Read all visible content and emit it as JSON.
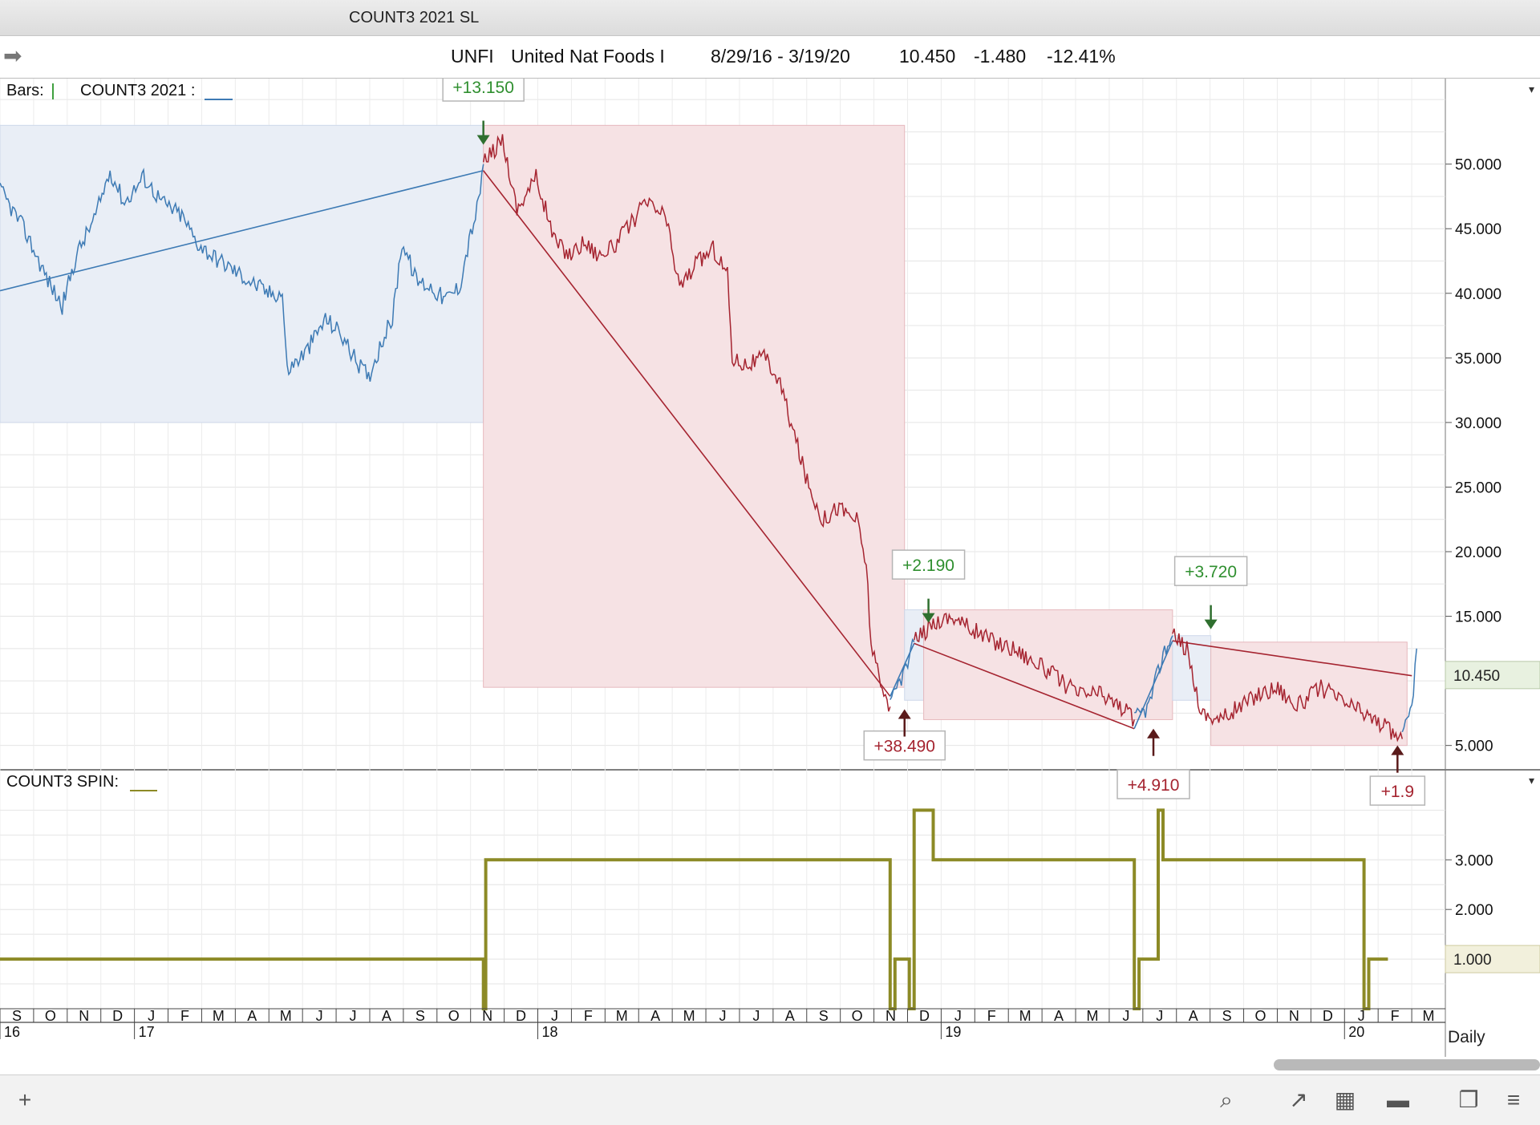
{
  "window": {
    "title": "COUNT3 2021 SL"
  },
  "info": {
    "symbol": "UNFI",
    "name": "United Nat Foods I",
    "range": "8/29/16 - 3/19/20",
    "last": "10.450",
    "change": "-1.480",
    "pct": "-12.41%"
  },
  "colors": {
    "blue": "#3d7ab4",
    "red": "#a52430",
    "green_label": "#2f8f2f",
    "olive": "#8c8a26",
    "blue_zone": "#e9eef6",
    "red_zone": "#f6e2e4"
  },
  "toolbar": {
    "daily_label": "Daily",
    "icons": [
      "plus-icon",
      "search-icon",
      "line-chart-icon",
      "grid-icon",
      "panel-icon",
      "book-icon",
      "menu-icon"
    ]
  },
  "chart_data": [
    {
      "type": "line",
      "panel_label": "Bars:",
      "indicator_label": "COUNT3 2021 :",
      "y_ticks": [
        "50.000",
        "45.000",
        "40.000",
        "35.000",
        "30.000",
        "25.000",
        "20.000",
        "15.000",
        "5.000"
      ],
      "last_value_tag": "10.450",
      "ylim": [
        2,
        56
      ],
      "price_series": {
        "blue_1": [
          [
            0,
            48
          ],
          [
            0.5,
            45
          ],
          [
            1,
            41
          ],
          [
            1.3,
            39
          ],
          [
            1.6,
            43
          ],
          [
            2,
            46
          ],
          [
            2.3,
            49.5
          ],
          [
            2.6,
            47
          ],
          [
            3,
            49
          ],
          [
            3.4,
            47
          ],
          [
            3.8,
            46
          ],
          [
            4.1,
            44
          ],
          [
            4.4,
            43
          ],
          [
            4.8,
            42
          ],
          [
            5.2,
            41
          ],
          [
            5.6,
            40
          ],
          [
            5.9,
            40
          ],
          [
            6.0,
            34
          ],
          [
            6.4,
            35.5
          ],
          [
            6.8,
            38
          ],
          [
            7.1,
            37
          ],
          [
            7.4,
            35
          ],
          [
            7.7,
            33.5
          ],
          [
            8.0,
            36.5
          ],
          [
            8.2,
            38
          ],
          [
            8.4,
            44
          ],
          [
            8.7,
            41
          ],
          [
            9.0,
            40.5
          ],
          [
            9.3,
            39.5
          ],
          [
            9.6,
            40.5
          ],
          [
            9.8,
            44
          ],
          [
            10.0,
            47
          ],
          [
            10.1,
            50
          ]
        ],
        "red_1": [
          [
            10.1,
            50
          ],
          [
            10.5,
            52
          ],
          [
            10.8,
            46.5
          ],
          [
            11.2,
            49
          ],
          [
            11.6,
            44
          ],
          [
            11.9,
            43
          ],
          [
            12.2,
            44
          ],
          [
            12.5,
            43
          ],
          [
            12.8,
            43.5
          ],
          [
            13.2,
            45.5
          ],
          [
            13.5,
            47
          ],
          [
            13.9,
            46
          ],
          [
            14.2,
            40.5
          ],
          [
            14.6,
            42.5
          ],
          [
            14.9,
            43.5
          ],
          [
            15.2,
            41.5
          ],
          [
            15.3,
            35
          ],
          [
            15.6,
            34.5
          ],
          [
            16.0,
            35
          ],
          [
            16.3,
            33
          ],
          [
            16.6,
            29
          ],
          [
            16.9,
            25
          ],
          [
            17.2,
            22.5
          ],
          [
            17.5,
            23.5
          ],
          [
            17.9,
            22.5
          ],
          [
            18.1,
            19
          ],
          [
            18.2,
            13
          ],
          [
            18.4,
            9.5
          ],
          [
            18.6,
            8
          ]
        ],
        "blue_2": [
          [
            18.6,
            8
          ],
          [
            18.8,
            10
          ],
          [
            19.0,
            11.5
          ],
          [
            19.1,
            13
          ]
        ],
        "red_2": [
          [
            19.1,
            13
          ],
          [
            19.5,
            14.5
          ],
          [
            19.9,
            15
          ],
          [
            20.3,
            14
          ],
          [
            20.8,
            13
          ],
          [
            21.2,
            12.5
          ],
          [
            21.6,
            11.5
          ],
          [
            22.0,
            10.5
          ],
          [
            22.5,
            9
          ],
          [
            23.0,
            9
          ],
          [
            23.4,
            8
          ],
          [
            23.7,
            7
          ]
        ],
        "blue_3": [
          [
            23.7,
            7
          ],
          [
            24.0,
            8
          ],
          [
            24.3,
            12
          ],
          [
            24.5,
            13.5
          ]
        ],
        "red_3": [
          [
            24.5,
            13.5
          ],
          [
            24.8,
            12.5
          ],
          [
            25.1,
            7.5
          ],
          [
            25.5,
            7
          ],
          [
            25.9,
            8
          ],
          [
            26.3,
            9
          ],
          [
            26.7,
            9.5
          ],
          [
            27.1,
            8
          ],
          [
            27.6,
            9.5
          ],
          [
            28.0,
            8.5
          ],
          [
            28.5,
            7.5
          ],
          [
            28.9,
            6.5
          ],
          [
            29.3,
            5.5
          ]
        ],
        "blue_4": [
          [
            29.3,
            5.5
          ],
          [
            29.5,
            8
          ],
          [
            29.6,
            12.5
          ]
        ]
      },
      "trend_lines": [
        {
          "color": "blue",
          "from": [
            0,
            40.2
          ],
          "to": [
            10.1,
            49.5
          ]
        },
        {
          "color": "red",
          "from": [
            10.1,
            49.5
          ],
          "to": [
            18.6,
            8.8
          ]
        },
        {
          "color": "blue",
          "from": [
            18.6,
            8.8
          ],
          "to": [
            19.1,
            12.9
          ]
        },
        {
          "color": "red",
          "from": [
            19.1,
            12.9
          ],
          "to": [
            23.7,
            6.3
          ]
        },
        {
          "color": "blue",
          "from": [
            23.7,
            6.3
          ],
          "to": [
            24.5,
            13.1
          ]
        },
        {
          "color": "red",
          "from": [
            24.5,
            13.1
          ],
          "to": [
            29.5,
            10.4
          ]
        }
      ],
      "zones": [
        {
          "color": "blue",
          "x": [
            0,
            10.1
          ],
          "y": [
            30,
            53
          ]
        },
        {
          "color": "red",
          "x": [
            10.1,
            18.9
          ],
          "y": [
            9.5,
            53
          ]
        },
        {
          "color": "blue",
          "x": [
            18.9,
            19.3
          ],
          "y": [
            8.5,
            15.5
          ]
        },
        {
          "color": "red",
          "x": [
            19.3,
            24.5
          ],
          "y": [
            7,
            15.5
          ]
        },
        {
          "color": "blue",
          "x": [
            24.5,
            25.3
          ],
          "y": [
            8.5,
            13.5
          ]
        },
        {
          "color": "red",
          "x": [
            25.3,
            29.4
          ],
          "y": [
            5,
            13
          ]
        }
      ],
      "annotations": [
        {
          "text": "+13.150",
          "color": "green",
          "x": 10.1,
          "box_y": 56,
          "arrow": "down",
          "arrow_y": 51.5
        },
        {
          "text": "+2.190",
          "color": "green",
          "x": 19.4,
          "box_y": 19,
          "arrow": "down",
          "arrow_y": 14.5
        },
        {
          "text": "+3.720",
          "color": "green",
          "x": 25.3,
          "box_y": 18.5,
          "arrow": "down",
          "arrow_y": 14
        },
        {
          "text": "+38.490",
          "color": "red",
          "x": 18.9,
          "box_y": 5,
          "arrow": "up",
          "arrow_y": 7.8
        },
        {
          "text": "+4.910",
          "color": "red",
          "x": 24.1,
          "box_y": 2,
          "arrow": "up",
          "arrow_y": 6.3
        },
        {
          "text": "+1.9",
          "color": "red",
          "x": 29.2,
          "box_y": 1.5,
          "arrow": "up",
          "arrow_y": 5
        }
      ]
    },
    {
      "type": "line",
      "panel_label": "COUNT3 SPIN:",
      "y_ticks": [
        "3.000",
        "2.000",
        "1.000"
      ],
      "last_value_tag": "1.000",
      "ylim": [
        0,
        4.2
      ],
      "series": [
        {
          "x": [
            0,
            10.1,
            10.1,
            10.15,
            10.15,
            18.6,
            18.6,
            18.7,
            18.7,
            19.0,
            19.0,
            19.1,
            19.1,
            19.5,
            19.5,
            23.7,
            23.7,
            23.8,
            23.8,
            24.2,
            24.2,
            24.3,
            24.3,
            24.5,
            24.5,
            28.5,
            28.5,
            28.6,
            28.6,
            29.0
          ],
          "values": [
            1,
            1,
            0,
            0,
            3,
            3,
            0,
            0,
            1,
            1,
            0,
            0,
            4,
            4,
            3,
            3,
            0,
            0,
            1,
            1,
            4,
            4,
            3,
            3,
            3,
            3,
            0,
            0,
            1,
            1
          ]
        }
      ]
    }
  ],
  "x_axis": {
    "months": [
      "S",
      "O",
      "N",
      "D",
      "J",
      "F",
      "M",
      "A",
      "M",
      "J",
      "J",
      "A",
      "S",
      "O",
      "N",
      "D",
      "J",
      "F",
      "M",
      "A",
      "M",
      "J",
      "J",
      "A",
      "S",
      "O",
      "N",
      "D",
      "J",
      "F",
      "M",
      "A",
      "M",
      "J",
      "J",
      "A",
      "S",
      "O",
      "N",
      "D",
      "J",
      "F",
      "M"
    ],
    "years": [
      {
        "label": "16",
        "index": 0
      },
      {
        "label": "17",
        "index": 4
      },
      {
        "label": "18",
        "index": 16
      },
      {
        "label": "19",
        "index": 28
      },
      {
        "label": "20",
        "index": 40
      }
    ]
  }
}
